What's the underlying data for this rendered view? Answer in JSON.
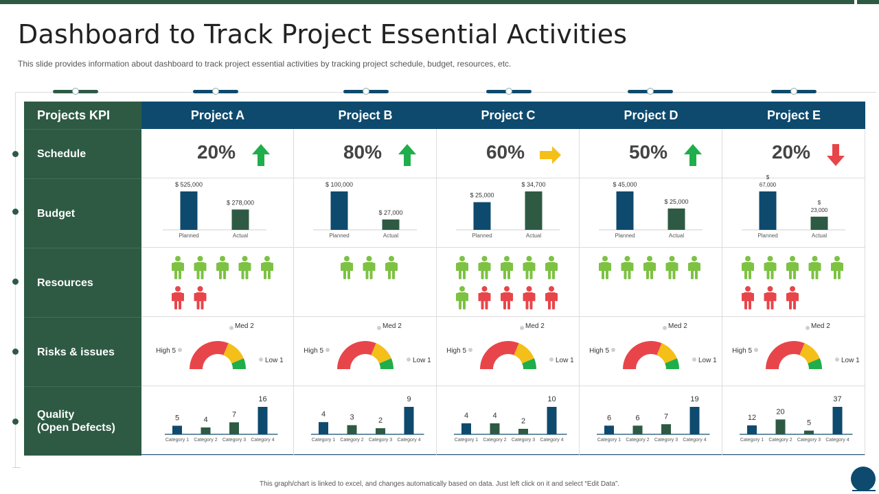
{
  "title": "Dashboard to Track Project Essential Activities",
  "subtitle": "This slide provides information about dashboard to track project essential activities by tracking project schedule, budget, resources, etc.",
  "footer": "This graph/chart is linked to excel, and changes automatically based on data. Just left click on it and select “Edit Data”.",
  "kpi_header": "Projects KPI",
  "rows": {
    "schedule": "Schedule",
    "budget": "Budget",
    "resources": "Resources",
    "risks": "Risks & issues",
    "quality_line1": "Quality",
    "quality_line2": "(Open Defects)"
  },
  "colors": {
    "green_dark": "#2e5a44",
    "navy": "#0e4a6e",
    "person_green": "#7dc242",
    "person_red": "#e8454a",
    "gauge_red": "#e8454a",
    "gauge_yellow": "#f5bf19",
    "gauge_green": "#1fae4b",
    "arrow_up": "#1fae4b",
    "arrow_right": "#f5bf19",
    "arrow_down": "#e8454a"
  },
  "gauge_labels": {
    "high": "High 5",
    "med": "Med 2",
    "low": "Low 1"
  },
  "budget_categories": [
    "Planned",
    "Actual"
  ],
  "quality_categories": [
    "Category 1",
    "Category 2",
    "Category 3",
    "Category 4"
  ],
  "projects": [
    {
      "name": "Project A",
      "schedule": "20%",
      "trend": "up",
      "budget": {
        "planned_label": "$ 525,000",
        "actual_label": "$ 278,000",
        "planned": 525000,
        "actual": 278000
      },
      "resources": {
        "green": 5,
        "red": 2
      },
      "risks": {
        "high": 5,
        "med": 2,
        "low": 1
      },
      "quality": {
        "values": [
          5,
          4,
          7,
          16
        ]
      }
    },
    {
      "name": "Project B",
      "schedule": "80%",
      "trend": "up",
      "budget": {
        "planned_label": "$ 100,000",
        "actual_label": "$ 27,000",
        "planned": 100000,
        "actual": 27000
      },
      "resources": {
        "green": 3,
        "red": 0
      },
      "risks": {
        "high": 5,
        "med": 2,
        "low": 1
      },
      "quality": {
        "values": [
          4,
          3,
          2,
          9
        ]
      }
    },
    {
      "name": "Project C",
      "schedule": "60%",
      "trend": "right",
      "budget": {
        "planned_label": "$ 25,000",
        "actual_label": "$ 34,700",
        "planned": 25000,
        "actual": 34700
      },
      "resources": {
        "green": 6,
        "red": 4
      },
      "risks": {
        "high": 5,
        "med": 2,
        "low": 1
      },
      "quality": {
        "values": [
          4,
          4,
          2,
          10
        ]
      }
    },
    {
      "name": "Project D",
      "schedule": "50%",
      "trend": "up",
      "budget": {
        "planned_label": "$ 45,000",
        "actual_label": "$ 25,000",
        "planned": 45000,
        "actual": 25000
      },
      "resources": {
        "green": 5,
        "red": 0
      },
      "risks": {
        "high": 5,
        "med": 2,
        "low": 1
      },
      "quality": {
        "values": [
          6,
          6,
          7,
          19
        ]
      }
    },
    {
      "name": "Project E",
      "schedule": "20%",
      "trend": "down",
      "budget": {
        "planned_label": "$ 67,000",
        "actual_label": "$ 23,000",
        "planned": 67000,
        "actual": 23000
      },
      "resources": {
        "green": 5,
        "red": 3
      },
      "risks": {
        "high": 5,
        "med": 2,
        "low": 1
      },
      "quality": {
        "values": [
          12,
          20,
          5,
          37
        ]
      }
    }
  ]
}
